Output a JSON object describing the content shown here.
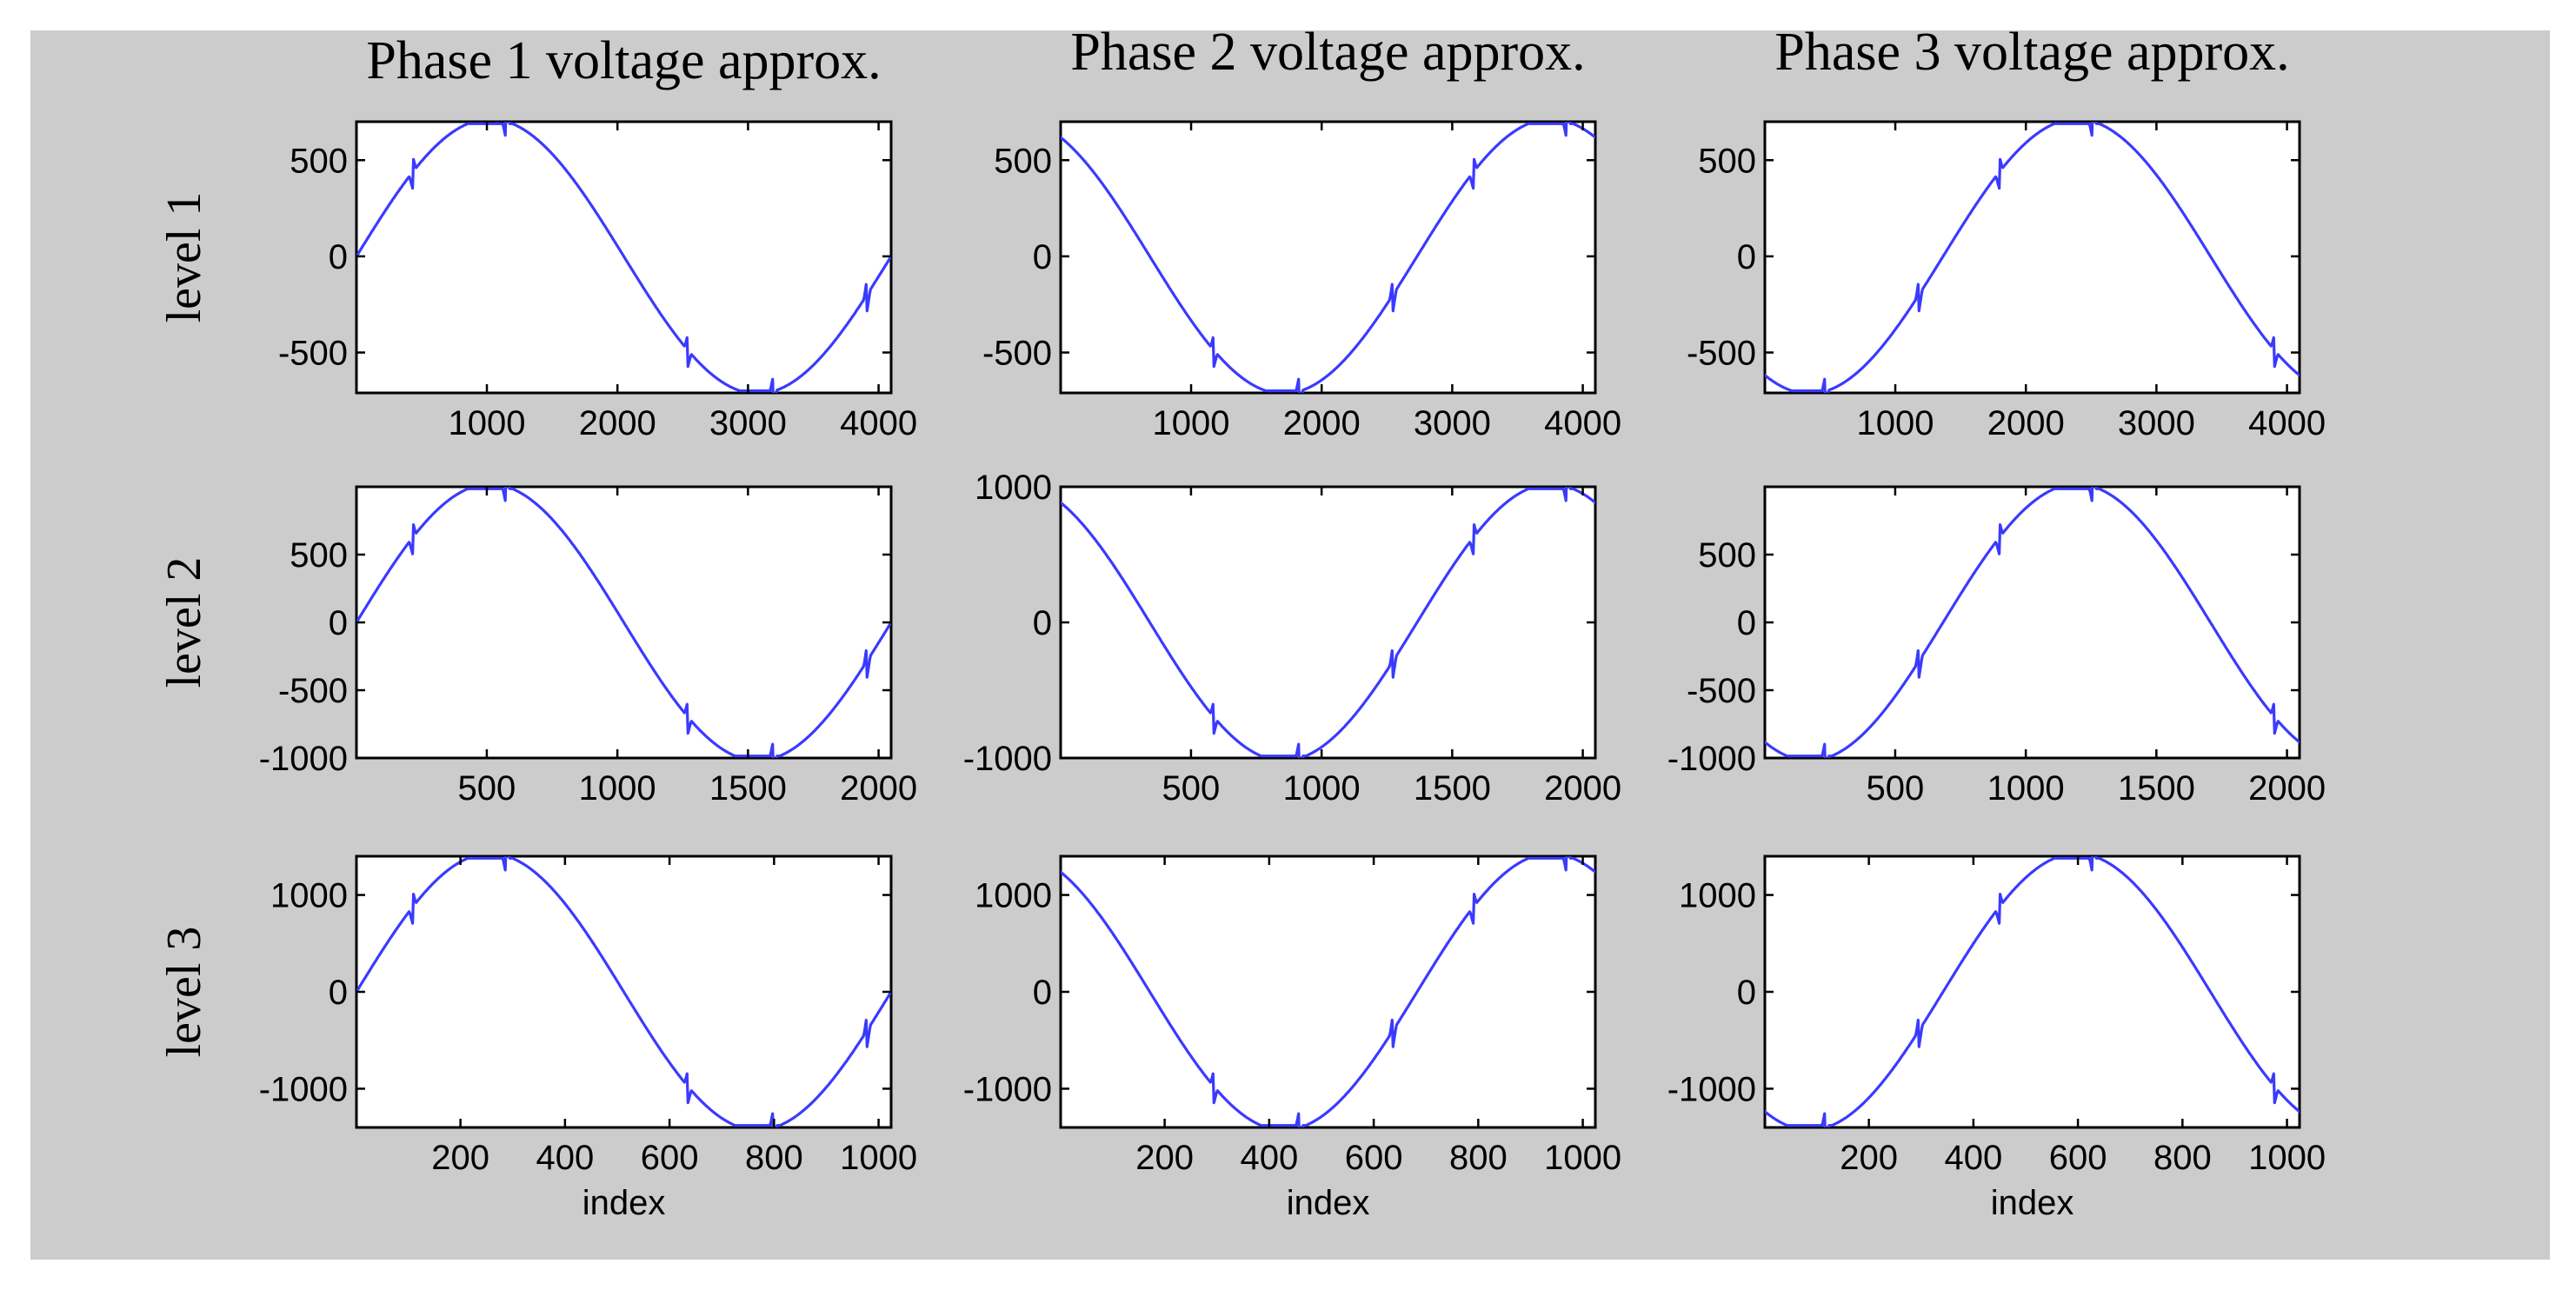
{
  "chart_data": {
    "type": "line",
    "colors": {
      "figure_background": "#cccccc",
      "axes_background": "#ffffff",
      "trace": "#3a3aff"
    },
    "column_titles": [
      "Phase 1 voltage approx.",
      "Phase 2 voltage approx.",
      "Phase 3 voltage approx."
    ],
    "row_labels": [
      "level 1",
      "level 2",
      "level 3"
    ],
    "xlabel": "index",
    "grid": false,
    "legend": "none",
    "rows": [
      {
        "amplitude": 700,
        "xlim": [
          1,
          4096
        ],
        "xticks": [
          1000,
          2000,
          3000,
          4000
        ],
        "ylim": [
          -710,
          700
        ],
        "yticks": [
          500,
          0,
          -500
        ],
        "ytick_labels": [
          "500",
          "0",
          "-500"
        ]
      },
      {
        "amplitude": 1000,
        "xlim": [
          1,
          2048
        ],
        "xticks": [
          500,
          1000,
          1500,
          2000
        ],
        "ylim": [
          -1000,
          1000
        ],
        "yticks": [
          1000,
          500,
          0,
          -500,
          -1000
        ],
        "ytick_labels": [
          "1000",
          "500",
          "0",
          "-500",
          "-1000"
        ]
      },
      {
        "amplitude": 1400,
        "xlim": [
          1,
          1024
        ],
        "xticks": [
          200,
          400,
          600,
          800,
          1000
        ],
        "ylim": [
          -1400,
          1400
        ],
        "yticks": [
          1000,
          0,
          -1000
        ],
        "ytick_labels": [
          "1000",
          "0",
          "-1000"
        ]
      }
    ],
    "panel_yticks": [
      [
        [
          500,
          0,
          -500
        ],
        [
          500,
          0,
          -500
        ],
        [
          500,
          0,
          -500
        ]
      ],
      [
        [
          500,
          0,
          -500,
          -1000
        ],
        [
          1000,
          0,
          -1000
        ],
        [
          500,
          0,
          -500,
          -1000
        ]
      ],
      [
        [
          1000,
          0,
          -1000
        ],
        [
          1000,
          0,
          -1000
        ],
        [
          1000,
          0,
          -1000
        ]
      ]
    ],
    "waveform": {
      "samples_per_cycle_fraction": 1.0,
      "phase_offset_deg": [
        0,
        -120,
        120
      ],
      "clip_fraction": 0.985,
      "transient_fractions": [
        0.105,
        0.28,
        0.62,
        0.78,
        0.955
      ],
      "description_values": "sinusoid sampled over index range; transients at phase switching points"
    }
  }
}
